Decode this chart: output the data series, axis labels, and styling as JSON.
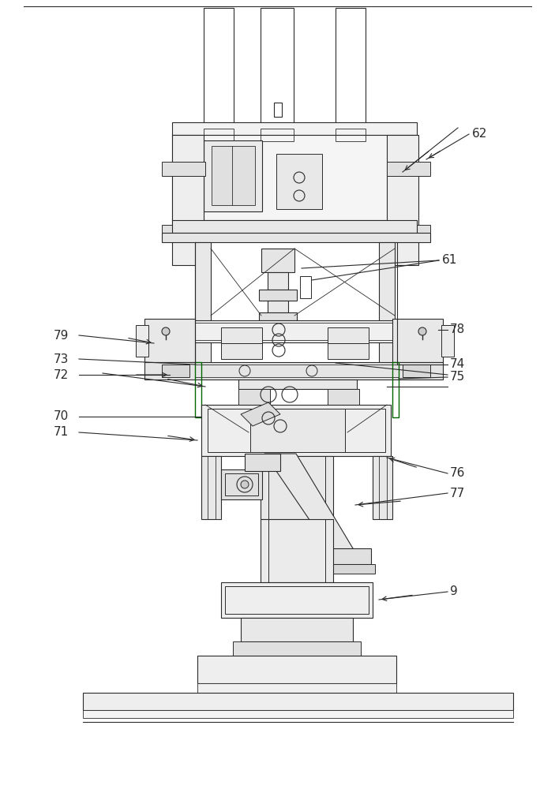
{
  "bg_color": "#ffffff",
  "lc": "#2a2a2a",
  "gc": "#006600",
  "label_color": "#1a1a1a",
  "fs": 11,
  "figsize": [
    7.03,
    10.0
  ],
  "dpi": 100
}
